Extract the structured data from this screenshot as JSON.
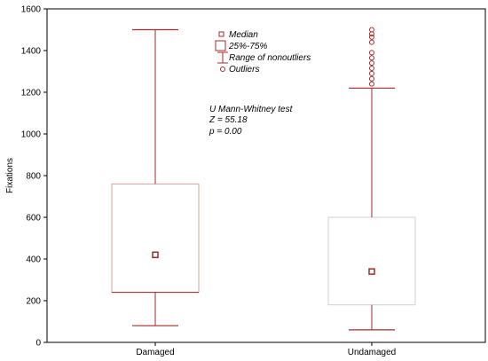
{
  "chart_data": {
    "type": "boxplot",
    "xlabel": "",
    "ylabel": "Fixations",
    "ylim": [
      0,
      1600
    ],
    "yticks": [
      0,
      200,
      400,
      600,
      800,
      1000,
      1200,
      1400,
      1600
    ],
    "categories": [
      "Damaged",
      "Undamaged"
    ],
    "boxes": [
      {
        "category": "Damaged",
        "median": 420,
        "q1": 240,
        "q3": 760,
        "whisker_low": 80,
        "whisker_high": 1500,
        "outliers": []
      },
      {
        "category": "Undamaged",
        "median": 340,
        "q1": 180,
        "q3": 600,
        "whisker_low": 60,
        "whisker_high": 1220,
        "outliers": [
          1240,
          1265,
          1290,
          1315,
          1340,
          1365,
          1390,
          1440,
          1465,
          1480,
          1500
        ]
      }
    ],
    "legend": {
      "position": "top-center",
      "items": [
        "Median",
        "25%-75%",
        "Range of nonoutliers",
        "Outliers"
      ]
    },
    "annotation": [
      "U Mann-Whitney test",
      "Z = 55.18",
      "p = 0.00"
    ],
    "grid": false,
    "colors": {
      "accent": "#a52a2a",
      "box_border_damaged": "#d9a0a0",
      "box_border_undamaged": "#cfcfcf",
      "axis": "#000000"
    }
  }
}
